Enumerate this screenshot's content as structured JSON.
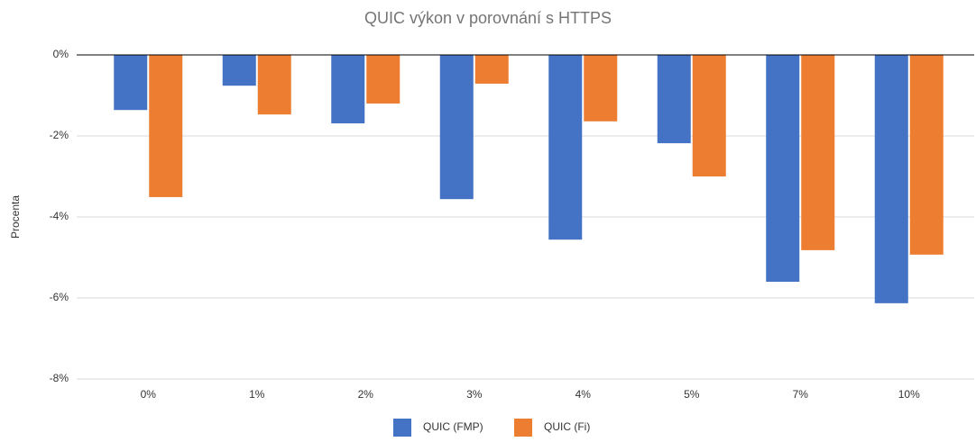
{
  "chart_data": {
    "type": "bar",
    "title": "QUIC výkon v porovnání s HTTPS",
    "y_label": "Procenta",
    "categories": [
      "0%",
      "1%",
      "2%",
      "3%",
      "4%",
      "5%",
      "7%",
      "10%"
    ],
    "series": [
      {
        "name": "QUIC (FMP)",
        "color": "#4472c4",
        "values": [
          -1.36,
          -0.76,
          -1.69,
          -3.56,
          -4.56,
          -2.18,
          -5.6,
          -6.13
        ]
      },
      {
        "name": "QUIC (Fi)",
        "color": "#ed7d31",
        "values": [
          -3.51,
          -1.47,
          -1.2,
          -0.71,
          -1.64,
          -3.0,
          -4.82,
          -4.93
        ]
      }
    ],
    "ylim": [
      -8,
      0
    ],
    "yticks": [
      {
        "value": -8,
        "label": "-8%"
      },
      {
        "value": -6,
        "label": "-6%"
      },
      {
        "value": -4,
        "label": "-4%"
      },
      {
        "value": -2,
        "label": "-2%"
      },
      {
        "value": 0,
        "label": "0%"
      }
    ],
    "grid": true,
    "legend": "bottom"
  }
}
